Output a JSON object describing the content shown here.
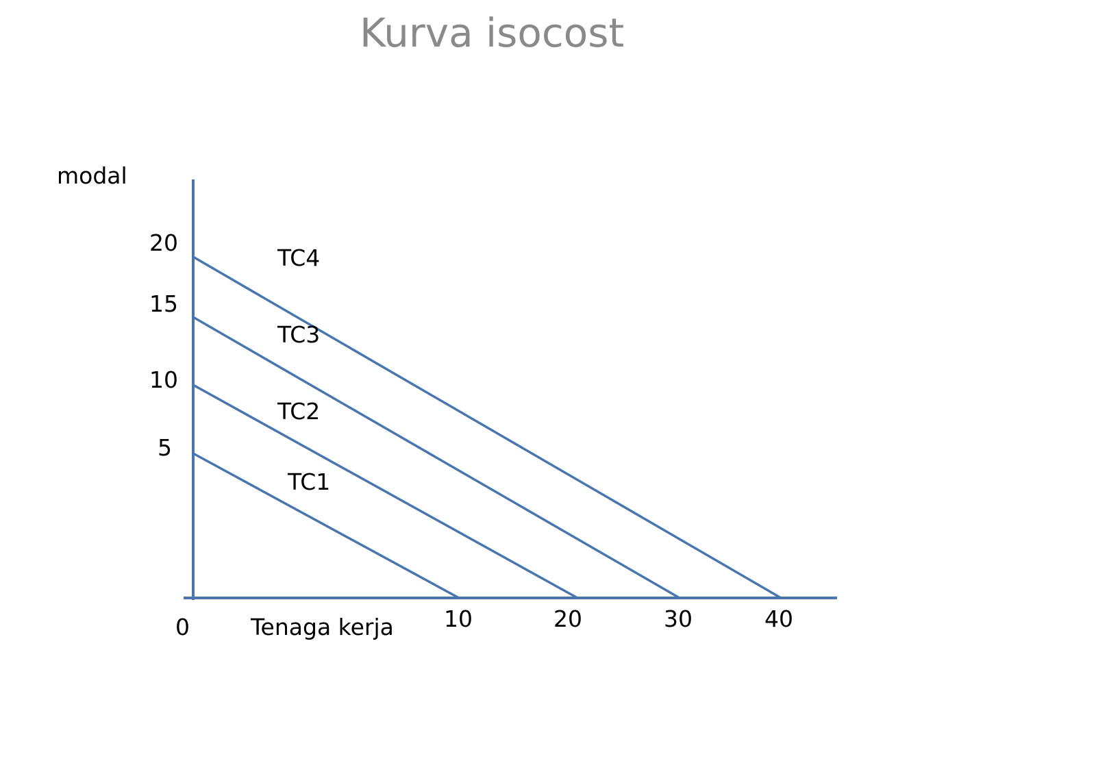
{
  "chart_data": {
    "type": "line",
    "title": "Kurva isocost",
    "xlabel": "Tenaga kerja",
    "ylabel": "modal",
    "origin_label": "0",
    "x_ticks": [
      10,
      20,
      30,
      40
    ],
    "y_ticks": [
      5,
      10,
      15,
      20
    ],
    "xlim": [
      0,
      45
    ],
    "ylim": [
      0,
      25
    ],
    "grid": false,
    "axis_color": "#4a76b0",
    "line_color": "#4a76b0",
    "series": [
      {
        "name": "TC1",
        "x": [
          0,
          10
        ],
        "y": [
          5,
          0
        ]
      },
      {
        "name": "TC2",
        "x": [
          0,
          20
        ],
        "y": [
          10,
          0
        ]
      },
      {
        "name": "TC3",
        "x": [
          0,
          30
        ],
        "y": [
          15,
          0
        ]
      },
      {
        "name": "TC4",
        "x": [
          0,
          40
        ],
        "y": [
          20,
          0
        ]
      }
    ]
  }
}
